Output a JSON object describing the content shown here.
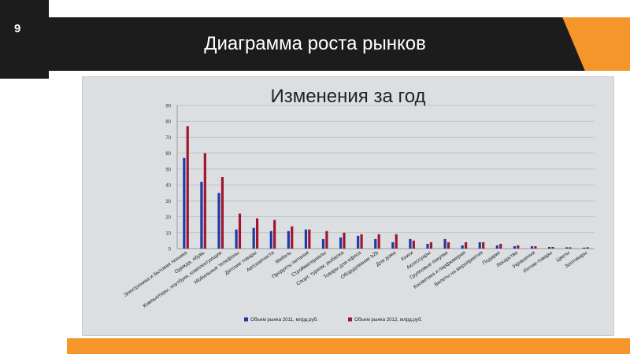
{
  "slide": {
    "number": "9",
    "title": "Диаграмма роста рынков"
  },
  "colors": {
    "header": "#1c1c1c",
    "accent": "#f5962a",
    "series_2011": "#1f3aa6",
    "series_2012": "#a0162d"
  },
  "chart_data": {
    "type": "bar",
    "title": "Изменения за год",
    "xlabel": "",
    "ylabel": "",
    "ylim": [
      0,
      90
    ],
    "yticks": [
      0,
      10,
      20,
      30,
      40,
      50,
      60,
      70,
      80,
      90
    ],
    "grid": true,
    "legend": "bottom",
    "categories": [
      "Электроника и бытовая техника",
      "Одежда, обувь",
      "Компьютеры, ноутбуки, комплектующие",
      "Мобильные телефоны",
      "Детские товары",
      "Автозапчасти",
      "Мебель",
      "Продукты питания",
      "Стройматериалы",
      "Спорт, туризм, рыбалка",
      "Товары для офиса",
      "Оборудование b2b",
      "Для дома",
      "Книги",
      "Аксессуары",
      "Групповые покупки",
      "Косметика и парфюмерия",
      "Билеты на мероприятия",
      "Подарки",
      "Лекарства",
      "Украшения",
      "Интим-товары",
      "Цветы",
      "Зоотовары"
    ],
    "series": [
      {
        "name": "Объем рынка 2011, млрд.руб.",
        "values": [
          57,
          42,
          35,
          12,
          13,
          11,
          11,
          12,
          6,
          7,
          8,
          6,
          4,
          6,
          3,
          6,
          2,
          4,
          2,
          1.5,
          1.5,
          1,
          0.8,
          0.6
        ]
      },
      {
        "name": "Объем рынка 2012, млрд.руб.",
        "values": [
          77,
          60,
          45,
          22,
          19,
          18,
          14,
          12,
          11,
          10,
          9,
          9,
          9,
          5,
          4,
          4,
          4,
          4,
          3,
          2,
          1.5,
          1,
          0.8,
          0.8
        ]
      }
    ]
  }
}
